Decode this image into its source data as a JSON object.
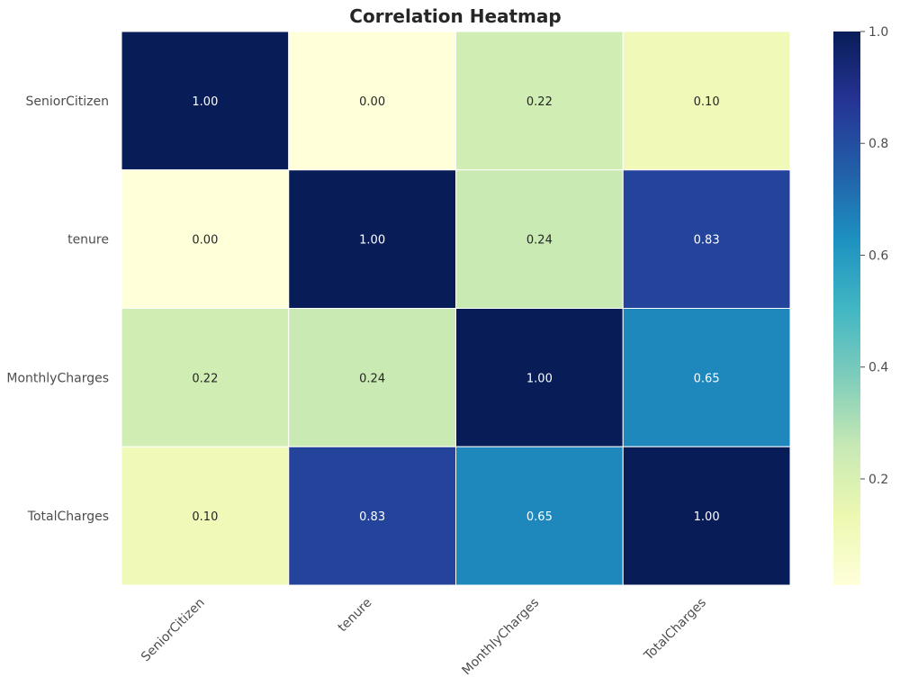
{
  "chart_data": {
    "type": "heatmap",
    "title": "Correlation Heatmap",
    "x_labels": [
      "SeniorCitizen",
      "tenure",
      "MonthlyCharges",
      "TotalCharges"
    ],
    "y_labels": [
      "SeniorCitizen",
      "tenure",
      "MonthlyCharges",
      "TotalCharges"
    ],
    "values": [
      [
        1.0,
        0.0,
        0.22,
        0.1
      ],
      [
        0.0,
        1.0,
        0.24,
        0.83
      ],
      [
        0.22,
        0.24,
        1.0,
        0.65
      ],
      [
        0.1,
        0.83,
        0.65,
        1.0
      ]
    ],
    "annotations": [
      [
        "1.00",
        "0.00",
        "0.22",
        "0.10"
      ],
      [
        "0.00",
        "1.00",
        "0.24",
        "0.83"
      ],
      [
        "0.22",
        "0.24",
        "1.00",
        "0.65"
      ],
      [
        "0.10",
        "0.83",
        "0.65",
        "1.00"
      ]
    ],
    "colormap": "YlGnBu",
    "vmin": 0.0,
    "vmax": 1.0,
    "colorbar_ticks": [
      "0.2",
      "0.4",
      "0.6",
      "0.8",
      "1.0"
    ],
    "colorbar_tick_values": [
      0.2,
      0.4,
      0.6,
      0.8,
      1.0
    ],
    "x_tick_rotation": "45 degrees",
    "gridlines": "white cell borders"
  }
}
